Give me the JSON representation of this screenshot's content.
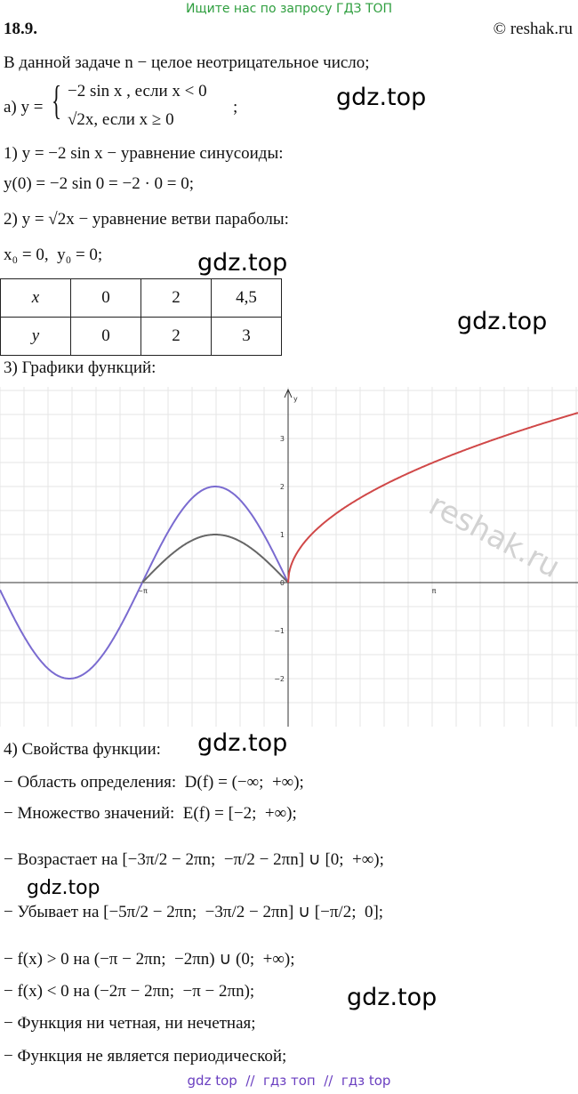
{
  "header": {
    "banner": "Ищите нас по запросу ГДЗ ТОП",
    "number": "18.9.",
    "copyright": "© reshak.ru"
  },
  "intro": "В данной задаче n − целое неотрицательное число;",
  "piecewise": {
    "label": "а) y =",
    "case1": "−2 sin x , если x < 0",
    "case2": "√2x, если x ≥ 0",
    "end": ";"
  },
  "steps": [
    "1) y = −2 sin x − уравнение синусоиды:",
    "y(0) = −2 sin 0 = −2 · 0 = 0;",
    "2) y = √2x − уравнение ветви параболы:",
    "x₀ = 0,  y₀ = 0;"
  ],
  "table": {
    "rows": [
      [
        "x",
        "0",
        "2",
        "4,5"
      ],
      [
        "y",
        "0",
        "2",
        "3"
      ]
    ]
  },
  "graph_title": "3) Графики функций:",
  "graph": {
    "y_label": "y",
    "y_ticks": [
      "3",
      "2",
      "1",
      "0",
      "−1",
      "−2"
    ],
    "x_ticks": [
      "−π",
      "π"
    ],
    "watermark": "reshak.ru"
  },
  "properties_title": "4) Свойства функции:",
  "properties": [
    "− Область определения:  D(f) = (−∞;  +∞);",
    "− Множество значений:  E(f) = [−2;  +∞);",
    "− Возрастает на [−3π/2 − 2πn;  −π/2 − 2πn] ∪ [0;  +∞);",
    "− Убывает на [−5π/2 − 2πn;  −3π/2 − 2πn] ∪ [−π/2;  0];",
    "− f(x) > 0 на (−π − 2πn;  −2πn) ∪ (0;  +∞);",
    "− f(x) < 0 на (−2π − 2πn;  −π − 2πn);",
    "− Функция ни четная, ни нечетная;",
    "− Функция не является периодической;"
  ],
  "watermarks": [
    "gdz.top",
    "gdz.top",
    "gdz.top",
    "gdz.top",
    "gdz.top",
    "gdz.top"
  ],
  "footer": "gdz top  //  гдз топ  //  гдз top"
}
